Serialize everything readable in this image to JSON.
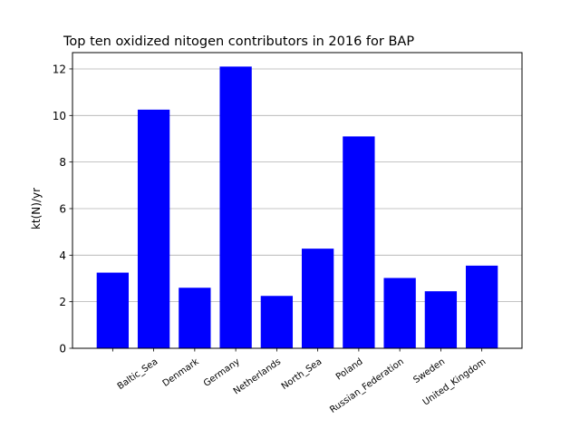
{
  "chart_data": {
    "type": "bar",
    "title": "Top ten oxidized nitogen contributors in 2016 for  BAP",
    "xlabel": "",
    "ylabel": "kt(N)/yr",
    "categories": [
      "",
      "Baltic_Sea",
      "Denmark",
      "Germany",
      "Netherlands",
      "North_Sea",
      "Poland",
      "Russian_Federation",
      "Sweden",
      "United_Kingdom"
    ],
    "values": [
      3.25,
      10.25,
      2.6,
      12.1,
      2.25,
      4.28,
      9.1,
      3.02,
      2.45,
      3.55
    ],
    "yticks": [
      0,
      2,
      4,
      6,
      8,
      10,
      12
    ],
    "ylim": [
      0,
      12.7
    ],
    "grid": "horizontal",
    "bar_color": "#0000ff"
  }
}
